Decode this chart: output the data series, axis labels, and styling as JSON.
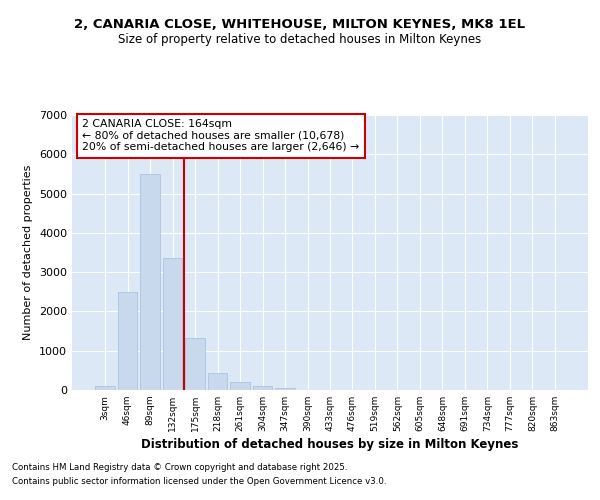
{
  "title_line1": "2, CANARIA CLOSE, WHITEHOUSE, MILTON KEYNES, MK8 1EL",
  "title_line2": "Size of property relative to detached houses in Milton Keynes",
  "xlabel": "Distribution of detached houses by size in Milton Keynes",
  "ylabel": "Number of detached properties",
  "categories": [
    "3sqm",
    "46sqm",
    "89sqm",
    "132sqm",
    "175sqm",
    "218sqm",
    "261sqm",
    "304sqm",
    "347sqm",
    "390sqm",
    "433sqm",
    "476sqm",
    "519sqm",
    "562sqm",
    "605sqm",
    "648sqm",
    "691sqm",
    "734sqm",
    "777sqm",
    "820sqm",
    "863sqm"
  ],
  "values": [
    100,
    2500,
    5500,
    3350,
    1320,
    430,
    210,
    95,
    50,
    0,
    0,
    0,
    0,
    0,
    0,
    0,
    0,
    0,
    0,
    0,
    0
  ],
  "bar_color": "#c8d9ee",
  "bar_edge_color": "#aac4e0",
  "fig_bg_color": "#ffffff",
  "ax_bg_color": "#dce8f5",
  "grid_color": "#ffffff",
  "annotation_text": "2 CANARIA CLOSE: 164sqm\n← 80% of detached houses are smaller (10,678)\n20% of semi-detached houses are larger (2,646) →",
  "annotation_box_color": "#ffffff",
  "annotation_box_edge_color": "#cc0000",
  "vline_position": 3.5,
  "vline_color": "#cc0000",
  "ylim": [
    0,
    7000
  ],
  "yticks": [
    0,
    1000,
    2000,
    3000,
    4000,
    5000,
    6000,
    7000
  ],
  "footnote1": "Contains HM Land Registry data © Crown copyright and database right 2025.",
  "footnote2": "Contains public sector information licensed under the Open Government Licence v3.0."
}
